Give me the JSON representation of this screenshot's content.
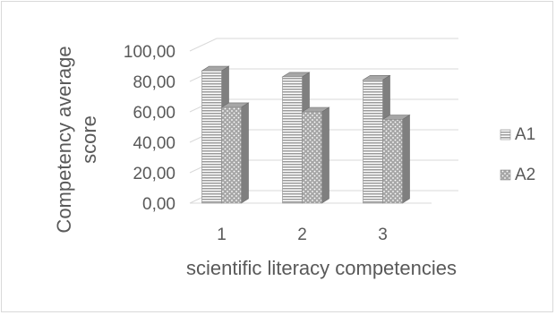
{
  "chart_data": {
    "type": "bar",
    "categories": [
      "1",
      "2",
      "3"
    ],
    "series": [
      {
        "name": "A1",
        "values": [
          87,
          83,
          81
        ],
        "pattern": "horizontal-stripes"
      },
      {
        "name": "A2",
        "values": [
          63,
          60,
          55
        ],
        "pattern": "dotted"
      }
    ],
    "title": "",
    "xlabel": "scientific literacy competencies",
    "ylabel": "Competency average score",
    "ylim": [
      0,
      100
    ],
    "yticks": [
      "0,00",
      "20,00",
      "40,00",
      "60,00",
      "80,00",
      "100,00"
    ],
    "grid": true,
    "three_d": true,
    "legend_position": "right",
    "colors": {
      "bar_front": "#bfbfbf",
      "bar_side": "#7f7f7f",
      "bar_top": "#a6a6a6",
      "grid": "#d9d9d9",
      "text": "#595959"
    }
  }
}
